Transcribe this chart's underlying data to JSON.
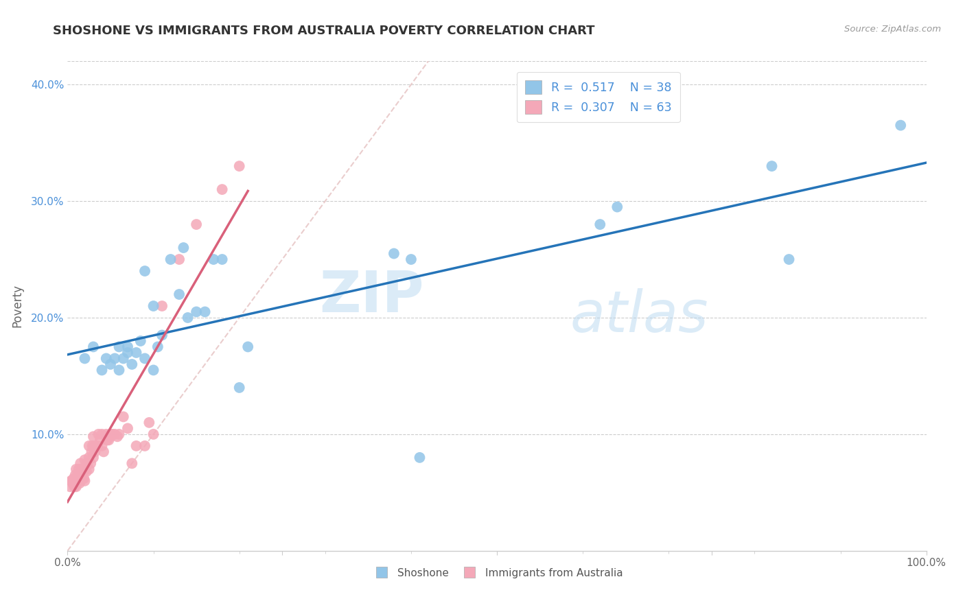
{
  "title": "SHOSHONE VS IMMIGRANTS FROM AUSTRALIA POVERTY CORRELATION CHART",
  "source": "Source: ZipAtlas.com",
  "ylabel": "Poverty",
  "watermark_zip": "ZIP",
  "watermark_atlas": "atlas",
  "xlim": [
    0,
    1.0
  ],
  "ylim": [
    0,
    0.42
  ],
  "shoshone_color": "#92c5e8",
  "australia_color": "#f4a8b8",
  "shoshone_line_color": "#2574b8",
  "australia_line_color": "#d9607a",
  "grid_color": "#cccccc",
  "diag_color": "#e8c8c8",
  "shoshone_scatter_label": "Shoshone",
  "australia_scatter_label": "Immigrants from Australia",
  "legend_r1": "R =  0.517",
  "legend_n1": "N = 38",
  "legend_r2": "R =  0.307",
  "legend_n2": "N = 63",
  "shoshone_x": [
    0.02,
    0.03,
    0.04,
    0.045,
    0.05,
    0.055,
    0.06,
    0.06,
    0.065,
    0.07,
    0.07,
    0.075,
    0.08,
    0.085,
    0.09,
    0.09,
    0.1,
    0.1,
    0.105,
    0.11,
    0.12,
    0.13,
    0.135,
    0.14,
    0.15,
    0.16,
    0.17,
    0.18,
    0.2,
    0.21,
    0.38,
    0.4,
    0.41,
    0.62,
    0.64,
    0.82,
    0.84,
    0.97
  ],
  "shoshone_y": [
    0.165,
    0.175,
    0.155,
    0.165,
    0.16,
    0.165,
    0.155,
    0.175,
    0.165,
    0.175,
    0.17,
    0.16,
    0.17,
    0.18,
    0.165,
    0.24,
    0.21,
    0.155,
    0.175,
    0.185,
    0.25,
    0.22,
    0.26,
    0.2,
    0.205,
    0.205,
    0.25,
    0.25,
    0.14,
    0.175,
    0.255,
    0.25,
    0.08,
    0.28,
    0.295,
    0.33,
    0.25,
    0.365
  ],
  "australia_x": [
    0.003,
    0.004,
    0.005,
    0.006,
    0.007,
    0.008,
    0.009,
    0.01,
    0.01,
    0.01,
    0.012,
    0.013,
    0.014,
    0.015,
    0.015,
    0.015,
    0.016,
    0.017,
    0.018,
    0.019,
    0.02,
    0.02,
    0.02,
    0.022,
    0.023,
    0.025,
    0.025,
    0.025,
    0.027,
    0.028,
    0.029,
    0.03,
    0.03,
    0.03,
    0.032,
    0.033,
    0.035,
    0.036,
    0.038,
    0.04,
    0.04,
    0.042,
    0.045,
    0.046,
    0.048,
    0.05,
    0.05,
    0.052,
    0.055,
    0.058,
    0.06,
    0.065,
    0.07,
    0.075,
    0.08,
    0.09,
    0.095,
    0.1,
    0.11,
    0.13,
    0.15,
    0.18,
    0.2
  ],
  "australia_y": [
    0.055,
    0.06,
    0.06,
    0.058,
    0.062,
    0.055,
    0.065,
    0.055,
    0.062,
    0.07,
    0.065,
    0.07,
    0.058,
    0.06,
    0.068,
    0.075,
    0.07,
    0.062,
    0.068,
    0.062,
    0.06,
    0.07,
    0.078,
    0.068,
    0.075,
    0.07,
    0.08,
    0.09,
    0.075,
    0.085,
    0.09,
    0.08,
    0.088,
    0.098,
    0.085,
    0.09,
    0.09,
    0.1,
    0.095,
    0.09,
    0.1,
    0.085,
    0.1,
    0.095,
    0.095,
    0.1,
    0.098,
    0.1,
    0.1,
    0.098,
    0.1,
    0.115,
    0.105,
    0.075,
    0.09,
    0.09,
    0.11,
    0.1,
    0.21,
    0.25,
    0.28,
    0.31,
    0.33
  ]
}
